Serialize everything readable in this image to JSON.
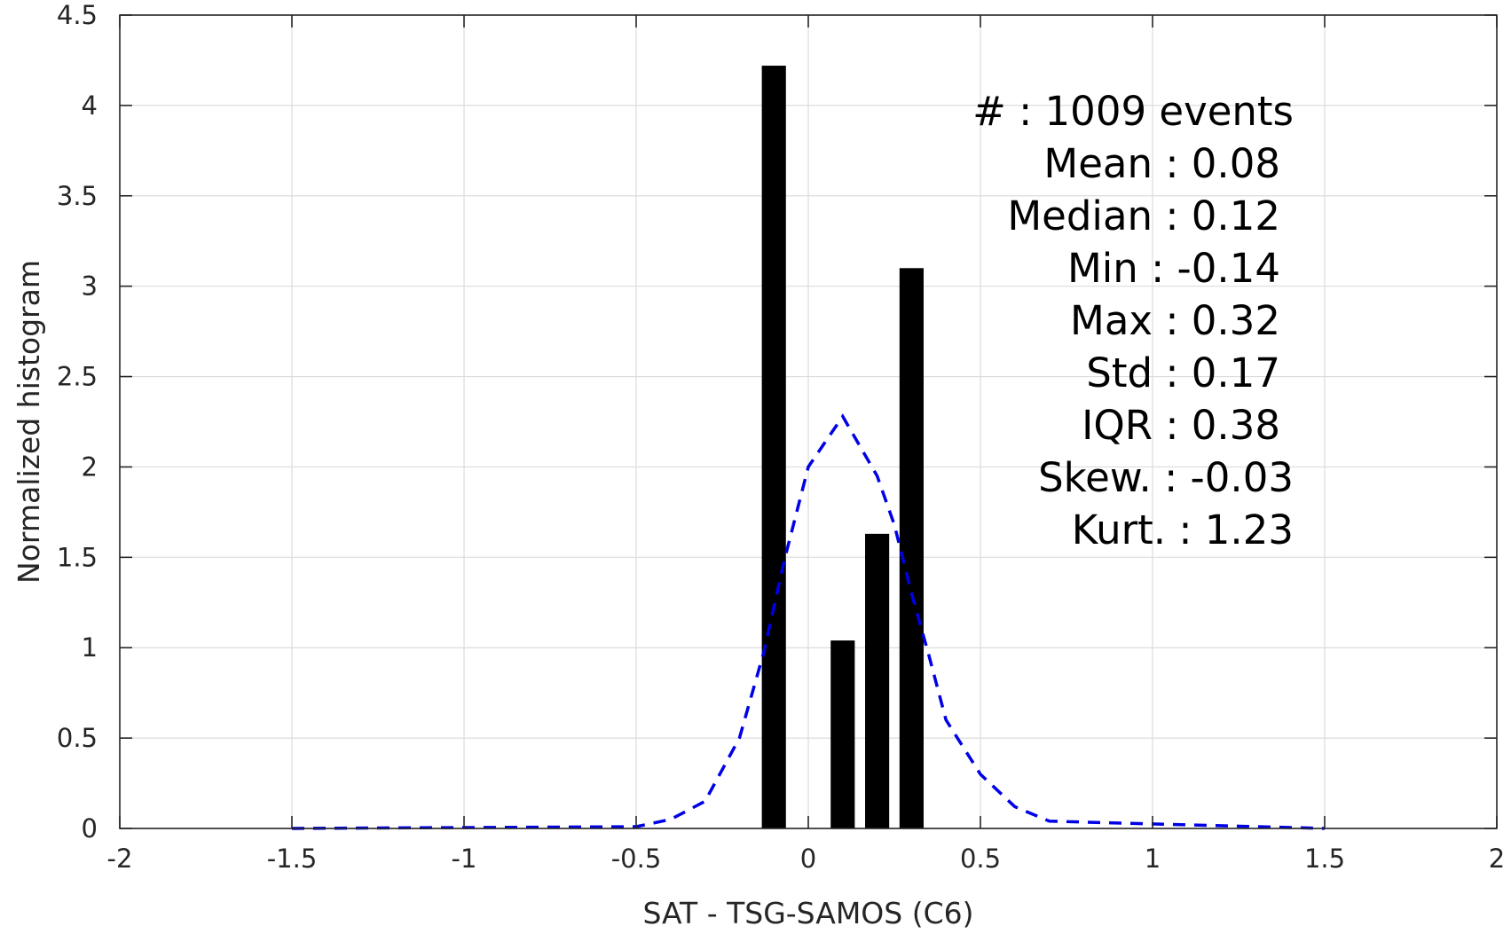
{
  "chart_data": {
    "type": "bar",
    "xlabel": "SAT - TSG-SAMOS (C6)",
    "ylabel": "Normalized histogram",
    "xlim": [
      -2,
      2
    ],
    "ylim": [
      0,
      4.5
    ],
    "grid": true,
    "x_ticks": [
      "-2",
      "-1.5",
      "-1",
      "-0.5",
      "0",
      "0.5",
      "1",
      "1.5",
      "2"
    ],
    "y_ticks": [
      "0",
      "0.5",
      "1",
      "1.5",
      "2",
      "2.5",
      "3",
      "3.5",
      "4",
      "4.5"
    ],
    "bars": [
      {
        "x": -0.1,
        "value": 4.22
      },
      {
        "x": 0.1,
        "value": 1.04
      },
      {
        "x": 0.2,
        "value": 1.63
      },
      {
        "x": 0.3,
        "value": 3.1
      }
    ],
    "bar_width": 0.07,
    "bar_color": "#000000",
    "fit_curve": {
      "style": "dashed",
      "color": "#0000e6",
      "x": [
        -1.5,
        -0.5,
        -0.4,
        -0.3,
        -0.2,
        -0.13,
        -0.07,
        0.0,
        0.1,
        0.2,
        0.25,
        0.3,
        0.35,
        0.4,
        0.5,
        0.6,
        0.7,
        1.5
      ],
      "y": [
        0.0,
        0.01,
        0.05,
        0.15,
        0.5,
        0.97,
        1.48,
        2.0,
        2.28,
        1.95,
        1.68,
        1.3,
        0.96,
        0.6,
        0.3,
        0.12,
        0.04,
        0.0
      ]
    },
    "stats_annotation": [
      "#  : 1009 events",
      "Mean : 0.08",
      "Median : 0.12",
      "Min : -0.14",
      "Max : 0.32",
      "Std : 0.17",
      "IQR : 0.38",
      "Skew. : -0.03",
      "Kurt. : 1.23"
    ]
  }
}
